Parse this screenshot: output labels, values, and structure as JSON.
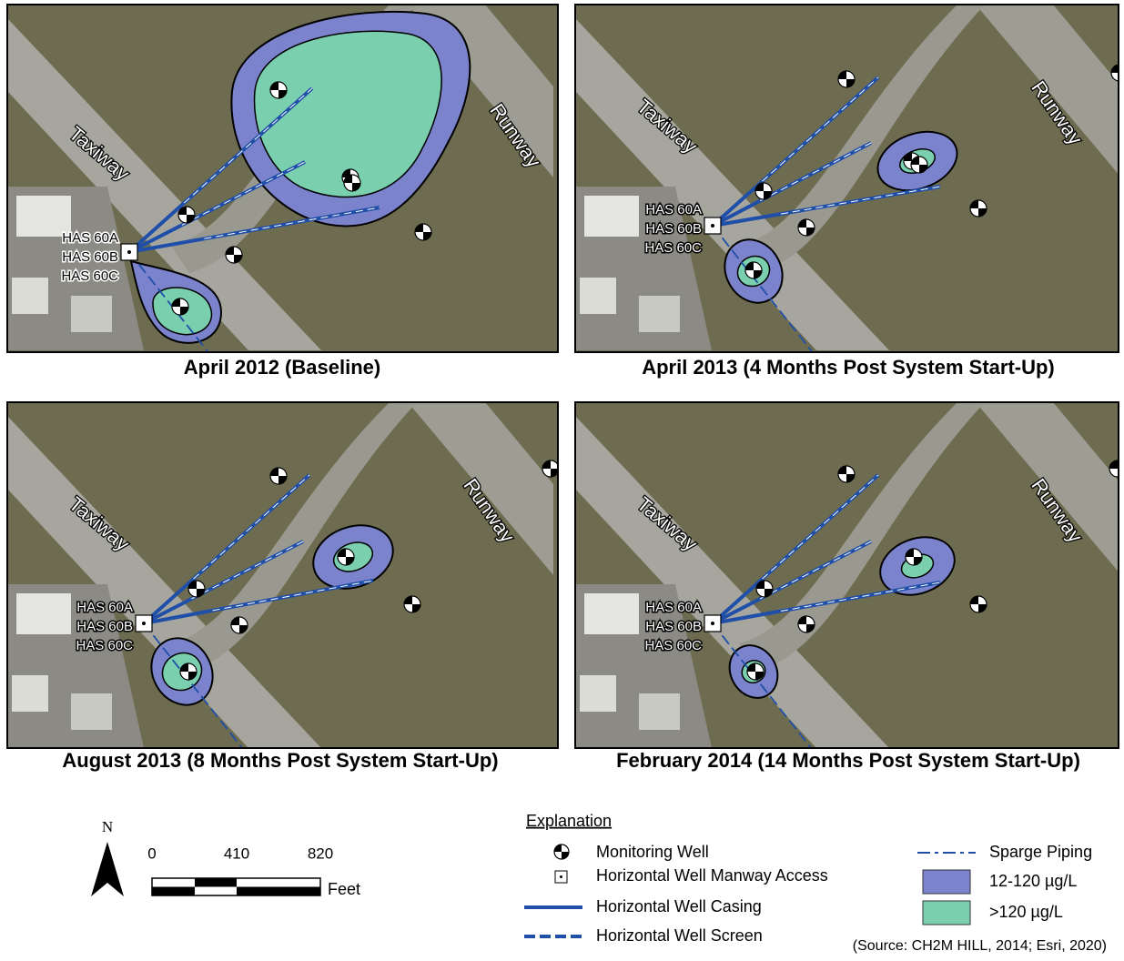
{
  "panels": [
    {
      "caption": "April 2012 (Baseline)",
      "taxiway": "Taxiway",
      "runway": "Runway",
      "wells": [
        "HAS 60A",
        "HAS 60B",
        "HAS 60C"
      ]
    },
    {
      "caption": "April 2013 (4 Months Post System Start-Up)",
      "taxiway": "Taxiway",
      "runway": "Runway",
      "wells": [
        "HAS 60A",
        "HAS 60B",
        "HAS 60C"
      ]
    },
    {
      "caption": "August 2013 (8 Months Post System Start-Up)",
      "taxiway": "Taxiway",
      "runway": "Runway",
      "wells": [
        "HAS 60A",
        "HAS 60B",
        "HAS 60C"
      ]
    },
    {
      "caption": "February 2014 (14 Months Post System Start-Up)",
      "taxiway": "Taxiway",
      "runway": "Runway",
      "wells": [
        "HAS 60A",
        "HAS 60B",
        "HAS 60C"
      ]
    }
  ],
  "north_arrow": {
    "label": "N"
  },
  "scale_bar": {
    "ticks": [
      0,
      410,
      820
    ],
    "unit": "Feet"
  },
  "legend": {
    "title": "Explanation",
    "items": [
      {
        "label": "Monitoring Well"
      },
      {
        "label": "Horizontal Well Manway Access"
      },
      {
        "label": "Horizontal Well Casing"
      },
      {
        "label": "Horizontal Well Screen"
      },
      {
        "label": "Sparge Piping"
      },
      {
        "label": "12-120 µg/L"
      },
      {
        "label": ">120 µg/L"
      }
    ]
  },
  "source": "(Source: CH2M HILL, 2014; Esri, 2020)"
}
